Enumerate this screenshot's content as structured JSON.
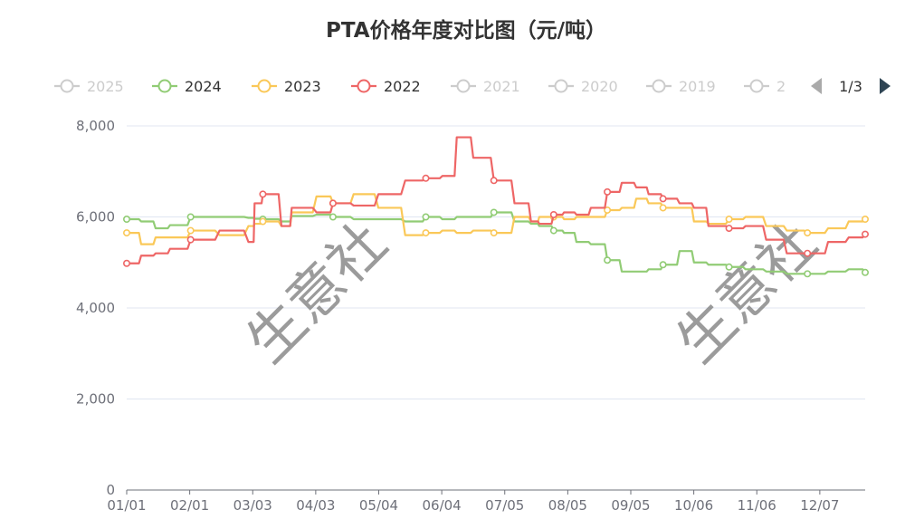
{
  "chart_data": {
    "type": "line",
    "title": "PTA价格年度对比图（元/吨）",
    "xlabel": "",
    "ylabel": "",
    "ylim": [
      0,
      8000
    ],
    "y_ticks": [
      "0",
      "2,000",
      "4,000",
      "6,000",
      "8,000"
    ],
    "x_ticks": [
      "01/01",
      "02/01",
      "03/03",
      "04/03",
      "05/04",
      "06/04",
      "07/05",
      "08/05",
      "09/05",
      "10/06",
      "11/06",
      "12/07"
    ],
    "grid": true,
    "legend_position": "top",
    "legend": [
      {
        "name": "2025",
        "active": false
      },
      {
        "name": "2024",
        "active": true
      },
      {
        "name": "2023",
        "active": true
      },
      {
        "name": "2022",
        "active": true
      },
      {
        "name": "2021",
        "active": false
      },
      {
        "name": "2020",
        "active": false
      },
      {
        "name": "2019",
        "active": false
      },
      {
        "name": "2",
        "active": false
      }
    ],
    "pager": "1/3",
    "watermark": "生意社",
    "x_days": [
      0,
      7,
      14,
      21,
      31,
      45,
      59,
      62,
      66,
      75,
      80,
      92,
      100,
      110,
      122,
      135,
      145,
      153,
      160,
      168,
      178,
      188,
      196,
      200,
      207,
      212,
      218,
      225,
      233,
      240,
      247,
      253,
      260,
      268,
      275,
      282,
      292,
      300,
      310,
      320,
      330,
      340,
      350,
      358
    ],
    "series": [
      {
        "name": "2024",
        "color": "#91cc75",
        "values": [
          5950,
          5900,
          5750,
          5820,
          6000,
          6000,
          5980,
          5960,
          5950,
          5900,
          6020,
          6050,
          6000,
          5950,
          5950,
          5900,
          6000,
          5950,
          6000,
          6000,
          6100,
          5900,
          5850,
          5800,
          5700,
          5650,
          5450,
          5400,
          5050,
          4800,
          4800,
          4850,
          4950,
          5250,
          5000,
          4950,
          4900,
          4850,
          4800,
          4750,
          4750,
          4800,
          4850,
          4780
        ]
      },
      {
        "name": "2023",
        "color": "#fac858",
        "values": [
          5650,
          5400,
          5550,
          5550,
          5700,
          5600,
          5800,
          5850,
          5900,
          5800,
          6100,
          6450,
          6300,
          6500,
          6200,
          5600,
          5650,
          5700,
          5650,
          5700,
          5650,
          6000,
          5900,
          6000,
          6000,
          5950,
          6000,
          6000,
          6150,
          6200,
          6400,
          6300,
          6200,
          6200,
          5900,
          5850,
          5950,
          6000,
          5800,
          5700,
          5650,
          5750,
          5900,
          5950
        ]
      },
      {
        "name": "2022",
        "color": "#ee6666",
        "values": [
          4980,
          5150,
          5200,
          5300,
          5500,
          5700,
          5450,
          6300,
          6500,
          5800,
          6200,
          6100,
          6300,
          6250,
          6500,
          6800,
          6850,
          6900,
          7750,
          7300,
          6800,
          6300,
          5900,
          5850,
          6050,
          6100,
          6050,
          6200,
          6550,
          6750,
          6650,
          6500,
          6400,
          6300,
          6200,
          5800,
          5750,
          5800,
          5500,
          5200,
          5200,
          5450,
          5550,
          5620
        ]
      }
    ]
  }
}
